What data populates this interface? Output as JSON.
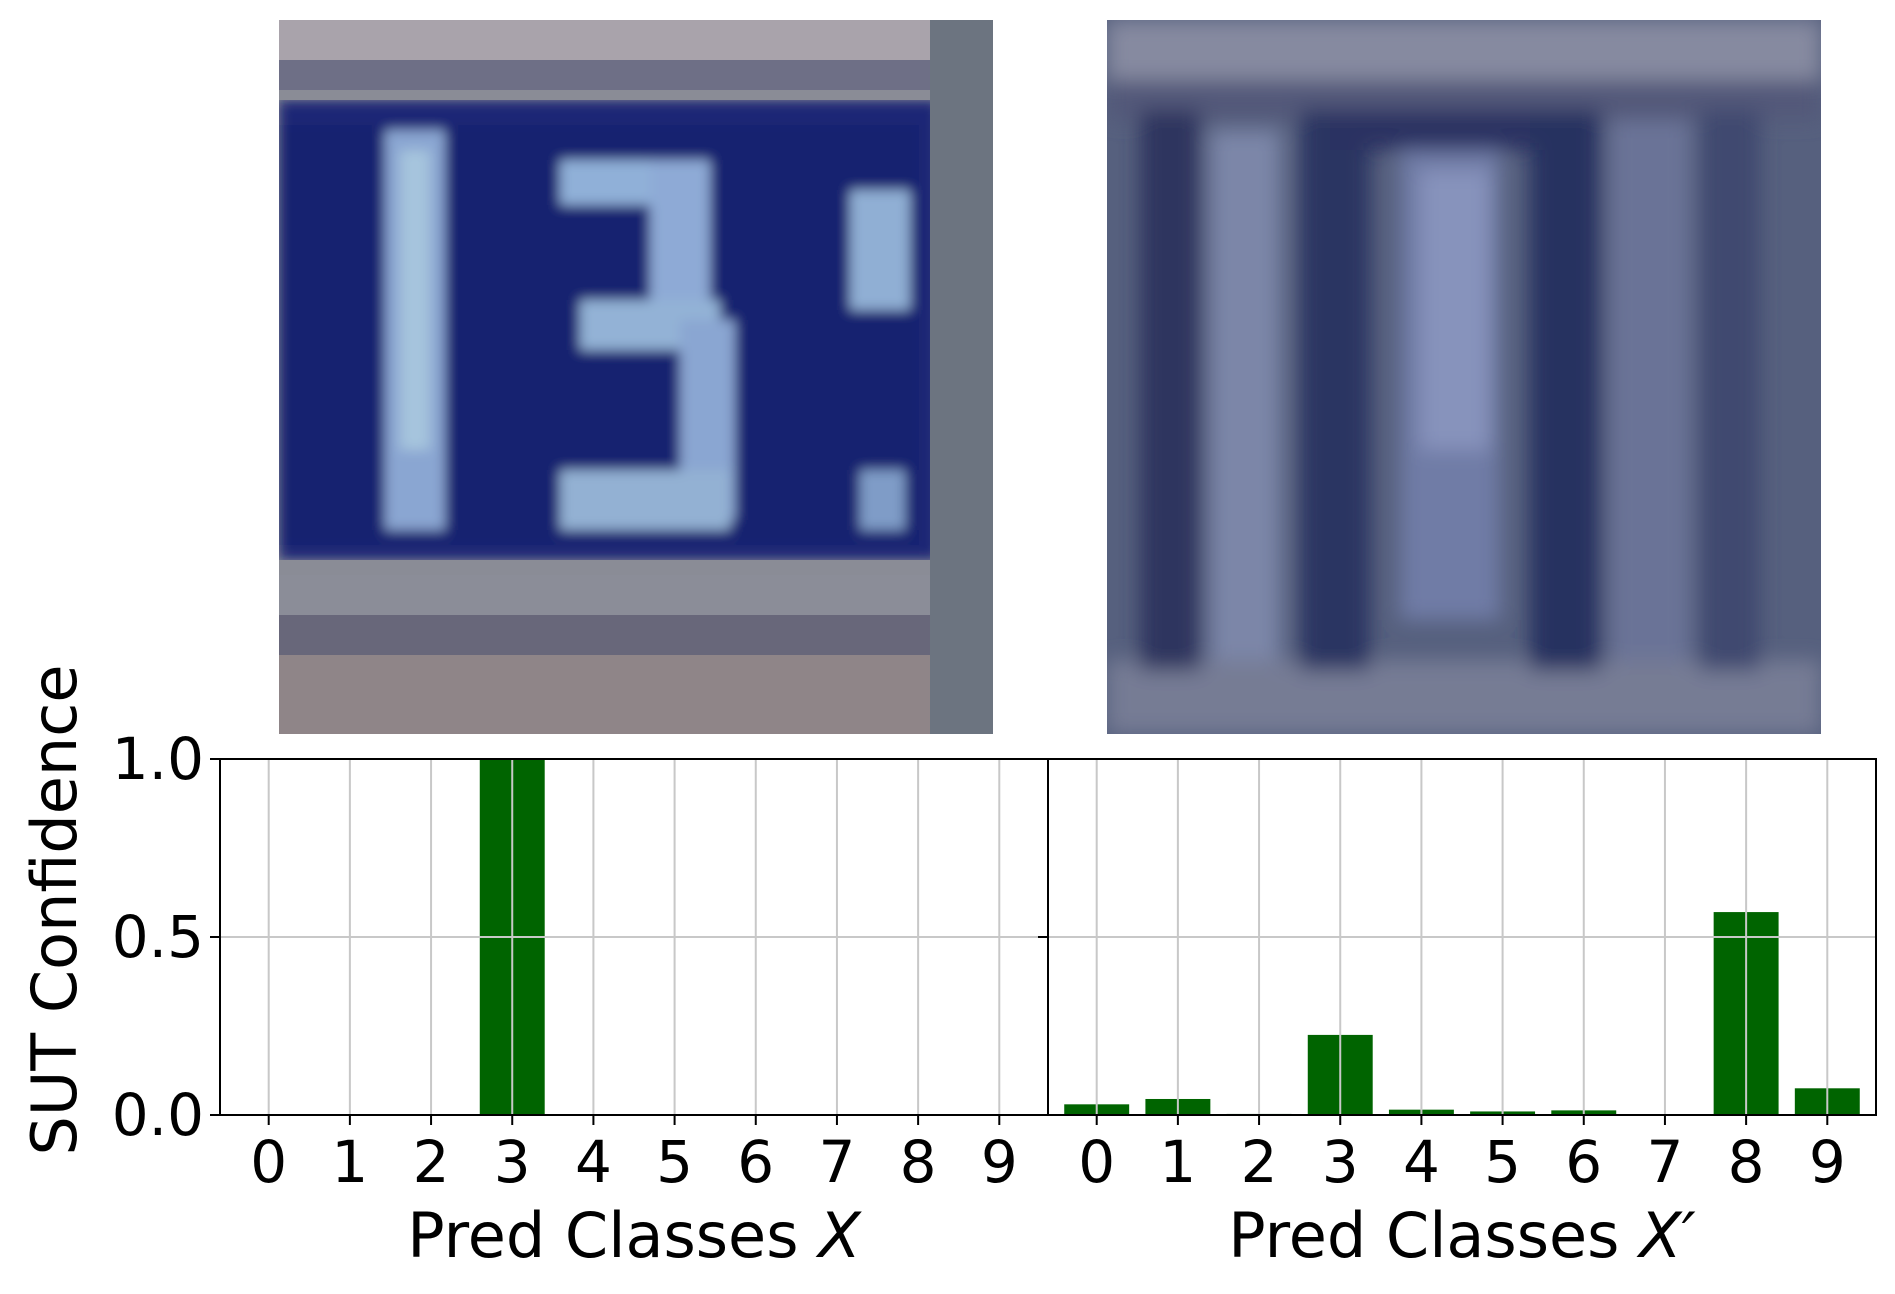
{
  "chart_data": [
    {
      "type": "bar",
      "panel": "left",
      "input_image": "SVHN digit crop showing house number 13 (original input X)",
      "categories": [
        "0",
        "1",
        "2",
        "3",
        "4",
        "5",
        "6",
        "7",
        "8",
        "9"
      ],
      "values": [
        0.0,
        0.0,
        0.0,
        1.0,
        0.0,
        0.0,
        0.0,
        0.0,
        0.0,
        0.0
      ],
      "xlabel": "Pred Classes ",
      "xlabel_var": "X",
      "ylabel": "SUT Confidence",
      "ylim": [
        0,
        1
      ],
      "yticks": [
        "0.0",
        "0.5",
        "1.0"
      ],
      "grid": true,
      "bar_color": "#006400"
    },
    {
      "type": "bar",
      "panel": "right",
      "input_image": "blurred/perturbed digit crop (test input X')",
      "categories": [
        "0",
        "1",
        "2",
        "3",
        "4",
        "5",
        "6",
        "7",
        "8",
        "9"
      ],
      "values": [
        0.03,
        0.045,
        0.003,
        0.225,
        0.015,
        0.01,
        0.013,
        0.0,
        0.57,
        0.075
      ],
      "xlabel": "Pred Classes ",
      "xlabel_var": "X′",
      "ylim": [
        0,
        1
      ],
      "grid": true,
      "bar_color": "#006400"
    }
  ]
}
